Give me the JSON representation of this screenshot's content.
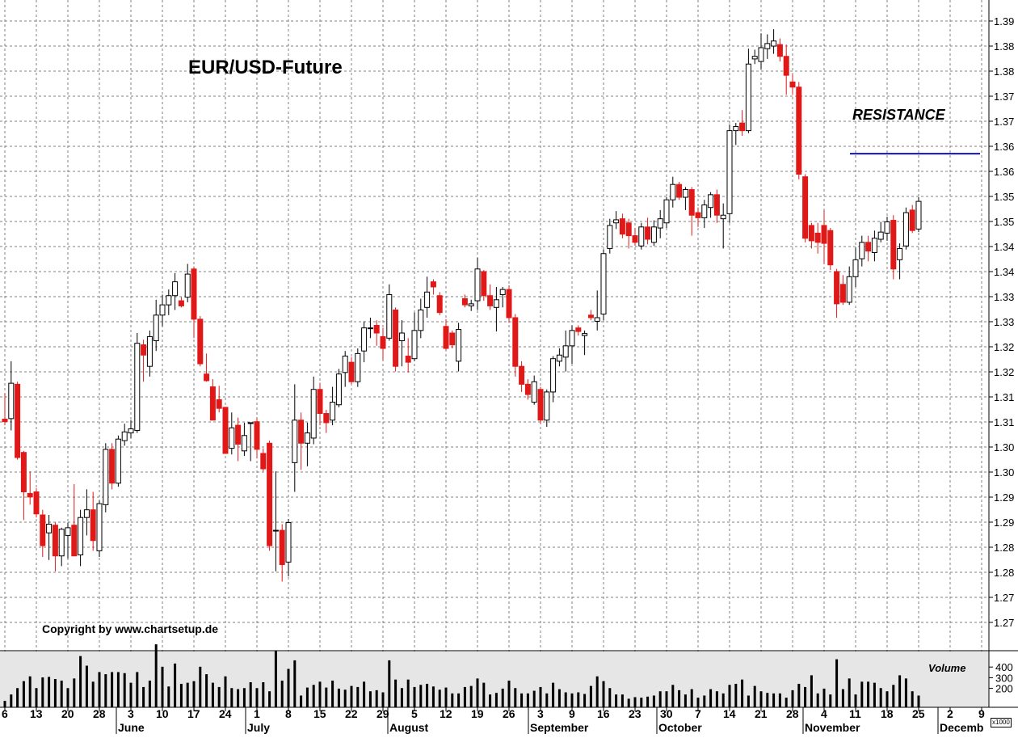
{
  "title": "EUR/USD-Future",
  "annotations": {
    "resistance_label": "RESISTANCE",
    "copyright": "Copyright by www.chartsetup.de",
    "volume_label": "Volume",
    "volume_scale": "x1000"
  },
  "colors": {
    "up": "#ffffff",
    "down": "#e01818",
    "wick_down": "#e01818",
    "wick_up": "#000000",
    "resistance_line": "#1010c0",
    "volume_bar": "#000000",
    "volume_bg": "#e6e6e6",
    "grid": "#808080"
  },
  "chart_data": {
    "type": "candlestick",
    "title": "EUR/USD-Future",
    "price_axis": {
      "range": [
        1.2635,
        1.3905
      ],
      "tick_labels": [
        "1.39",
        "1.38",
        "1.38",
        "1.37",
        "1.37",
        "1.36",
        "1.36",
        "1.35",
        "1.35",
        "1.34",
        "1.34",
        "1.33",
        "1.33",
        "1.32",
        "1.32",
        "1.31",
        "1.31",
        "1.30",
        "1.30",
        "1.29",
        "1.29",
        "1.28",
        "1.28",
        "1.27",
        "1.27"
      ]
    },
    "volume_axis": {
      "range": [
        0,
        500
      ],
      "tick_labels": [
        "400",
        "300",
        "200"
      ]
    },
    "time_axis": {
      "day_labels": [
        "6",
        "13",
        "20",
        "28",
        "3",
        "10",
        "17",
        "24",
        "1",
        "8",
        "15",
        "22",
        "29",
        "5",
        "12",
        "19",
        "26",
        "3",
        "9",
        "16",
        "23",
        "30",
        "7",
        "14",
        "21",
        "28",
        "4",
        "11",
        "18",
        "25",
        "2",
        "9"
      ],
      "month_labels": [
        "June",
        "July",
        "August",
        "September",
        "October",
        "November",
        "Decemb"
      ]
    },
    "resistance": {
      "label": "RESISTANCE",
      "value": 1.3605
    },
    "candles": [
      {
        "o": 1.3087,
        "h": 1.3137,
        "l": 1.3075,
        "c": 1.3082,
        "v": 60
      },
      {
        "o": 1.3088,
        "h": 1.32,
        "l": 1.3065,
        "c": 1.3157,
        "v": 120
      },
      {
        "o": 1.3155,
        "h": 1.316,
        "l": 1.3008,
        "c": 1.3012,
        "v": 180
      },
      {
        "o": 1.3022,
        "h": 1.3025,
        "l": 1.289,
        "c": 1.2945,
        "v": 245
      },
      {
        "o": 1.2942,
        "h": 1.2985,
        "l": 1.292,
        "c": 1.2935,
        "v": 290
      },
      {
        "o": 1.2945,
        "h": 1.2952,
        "l": 1.2895,
        "c": 1.2902,
        "v": 180
      },
      {
        "o": 1.29,
        "h": 1.291,
        "l": 1.2818,
        "c": 1.284,
        "v": 280
      },
      {
        "o": 1.2865,
        "h": 1.29,
        "l": 1.2812,
        "c": 1.2882,
        "v": 285
      },
      {
        "o": 1.288,
        "h": 1.2885,
        "l": 1.279,
        "c": 1.282,
        "v": 265
      },
      {
        "o": 1.282,
        "h": 1.2875,
        "l": 1.28,
        "c": 1.2872,
        "v": 250
      },
      {
        "o": 1.286,
        "h": 1.2885,
        "l": 1.2815,
        "c": 1.2875,
        "v": 180
      },
      {
        "o": 1.288,
        "h": 1.296,
        "l": 1.282,
        "c": 1.282,
        "v": 270
      },
      {
        "o": 1.2822,
        "h": 1.291,
        "l": 1.28,
        "c": 1.2895,
        "v": 480
      },
      {
        "o": 1.2895,
        "h": 1.295,
        "l": 1.286,
        "c": 1.291,
        "v": 390
      },
      {
        "o": 1.291,
        "h": 1.2945,
        "l": 1.283,
        "c": 1.285,
        "v": 240
      },
      {
        "o": 1.283,
        "h": 1.2928,
        "l": 1.2818,
        "c": 1.2922,
        "v": 330
      },
      {
        "o": 1.292,
        "h": 1.304,
        "l": 1.2905,
        "c": 1.3028,
        "v": 310
      },
      {
        "o": 1.3028,
        "h": 1.304,
        "l": 1.295,
        "c": 1.2962,
        "v": 330
      },
      {
        "o": 1.2962,
        "h": 1.3055,
        "l": 1.2955,
        "c": 1.3048,
        "v": 330
      },
      {
        "o": 1.3045,
        "h": 1.3078,
        "l": 1.3035,
        "c": 1.3062,
        "v": 320
      },
      {
        "o": 1.306,
        "h": 1.3085,
        "l": 1.305,
        "c": 1.3068,
        "v": 230
      },
      {
        "o": 1.3065,
        "h": 1.3255,
        "l": 1.306,
        "c": 1.3235,
        "v": 330
      },
      {
        "o": 1.3232,
        "h": 1.3242,
        "l": 1.316,
        "c": 1.3212,
        "v": 190
      },
      {
        "o": 1.319,
        "h": 1.326,
        "l": 1.317,
        "c": 1.3248,
        "v": 250
      },
      {
        "o": 1.324,
        "h": 1.332,
        "l": 1.322,
        "c": 1.329,
        "v": 590
      },
      {
        "o": 1.329,
        "h": 1.333,
        "l": 1.3268,
        "c": 1.331,
        "v": 380
      },
      {
        "o": 1.331,
        "h": 1.334,
        "l": 1.329,
        "c": 1.3328,
        "v": 195
      },
      {
        "o": 1.3328,
        "h": 1.3372,
        "l": 1.33,
        "c": 1.3355,
        "v": 410
      },
      {
        "o": 1.3318,
        "h": 1.3325,
        "l": 1.3305,
        "c": 1.3308,
        "v": 220
      },
      {
        "o": 1.3325,
        "h": 1.339,
        "l": 1.3315,
        "c": 1.337,
        "v": 230
      },
      {
        "o": 1.338,
        "h": 1.3385,
        "l": 1.3245,
        "c": 1.3282,
        "v": 245
      },
      {
        "o": 1.3282,
        "h": 1.3288,
        "l": 1.319,
        "c": 1.3195,
        "v": 380
      },
      {
        "o": 1.3175,
        "h": 1.3215,
        "l": 1.316,
        "c": 1.3162,
        "v": 310
      },
      {
        "o": 1.315,
        "h": 1.3165,
        "l": 1.3085,
        "c": 1.3085,
        "v": 230
      },
      {
        "o": 1.3125,
        "h": 1.3152,
        "l": 1.31,
        "c": 1.3108,
        "v": 190
      },
      {
        "o": 1.311,
        "h": 1.311,
        "l": 1.302,
        "c": 1.302,
        "v": 290
      },
      {
        "o": 1.303,
        "h": 1.31,
        "l": 1.3018,
        "c": 1.307,
        "v": 180
      },
      {
        "o": 1.3075,
        "h": 1.309,
        "l": 1.3005,
        "c": 1.3038,
        "v": 170
      },
      {
        "o": 1.3025,
        "h": 1.308,
        "l": 1.3015,
        "c": 1.3055,
        "v": 180
      },
      {
        "o": 1.308,
        "h": 1.308,
        "l": 1.3005,
        "c": 1.308,
        "v": 235
      },
      {
        "o": 1.3082,
        "h": 1.309,
        "l": 1.301,
        "c": 1.3028,
        "v": 180
      },
      {
        "o": 1.302,
        "h": 1.303,
        "l": 1.2985,
        "c": 1.299,
        "v": 235
      },
      {
        "o": 1.304,
        "h": 1.3045,
        "l": 1.283,
        "c": 1.284,
        "v": 150
      },
      {
        "o": 1.287,
        "h": 1.2985,
        "l": 1.279,
        "c": 1.287,
        "v": 530
      },
      {
        "o": 1.287,
        "h": 1.2882,
        "l": 1.277,
        "c": 1.2803,
        "v": 250
      },
      {
        "o": 1.2808,
        "h": 1.2892,
        "l": 1.278,
        "c": 1.2885,
        "v": 360
      },
      {
        "o": 1.3002,
        "h": 1.3155,
        "l": 1.2945,
        "c": 1.3085,
        "v": 440
      },
      {
        "o": 1.3085,
        "h": 1.31,
        "l": 1.2988,
        "c": 1.304,
        "v": 110
      },
      {
        "o": 1.304,
        "h": 1.308,
        "l": 1.2995,
        "c": 1.306,
        "v": 185
      },
      {
        "o": 1.305,
        "h": 1.317,
        "l": 1.3038,
        "c": 1.3145,
        "v": 210
      },
      {
        "o": 1.3145,
        "h": 1.3158,
        "l": 1.3075,
        "c": 1.3098,
        "v": 240
      },
      {
        "o": 1.3098,
        "h": 1.3105,
        "l": 1.306,
        "c": 1.308,
        "v": 185
      },
      {
        "o": 1.3085,
        "h": 1.315,
        "l": 1.3075,
        "c": 1.312,
        "v": 250
      },
      {
        "o": 1.3115,
        "h": 1.3185,
        "l": 1.311,
        "c": 1.3175,
        "v": 175
      },
      {
        "o": 1.3178,
        "h": 1.322,
        "l": 1.315,
        "c": 1.321,
        "v": 165
      },
      {
        "o": 1.3198,
        "h": 1.3208,
        "l": 1.3155,
        "c": 1.316,
        "v": 200
      },
      {
        "o": 1.316,
        "h": 1.3225,
        "l": 1.315,
        "c": 1.3215,
        "v": 190
      },
      {
        "o": 1.322,
        "h": 1.3278,
        "l": 1.3198,
        "c": 1.3265,
        "v": 240
      },
      {
        "o": 1.3265,
        "h": 1.3285,
        "l": 1.3245,
        "c": 1.3265,
        "v": 150
      },
      {
        "o": 1.327,
        "h": 1.328,
        "l": 1.323,
        "c": 1.3255,
        "v": 160
      },
      {
        "o": 1.3248,
        "h": 1.3265,
        "l": 1.3202,
        "c": 1.3225,
        "v": 140
      },
      {
        "o": 1.3245,
        "h": 1.335,
        "l": 1.324,
        "c": 1.333,
        "v": 440
      },
      {
        "o": 1.33,
        "h": 1.3305,
        "l": 1.318,
        "c": 1.319,
        "v": 260
      },
      {
        "o": 1.324,
        "h": 1.328,
        "l": 1.319,
        "c": 1.3255,
        "v": 180
      },
      {
        "o": 1.321,
        "h": 1.3245,
        "l": 1.3178,
        "c": 1.3198,
        "v": 260
      },
      {
        "o": 1.3205,
        "h": 1.3295,
        "l": 1.32,
        "c": 1.326,
        "v": 190
      },
      {
        "o": 1.326,
        "h": 1.3322,
        "l": 1.3245,
        "c": 1.33,
        "v": 210
      },
      {
        "o": 1.3305,
        "h": 1.3365,
        "l": 1.3285,
        "c": 1.3335,
        "v": 220
      },
      {
        "o": 1.3355,
        "h": 1.336,
        "l": 1.333,
        "c": 1.3345,
        "v": 195
      },
      {
        "o": 1.3328,
        "h": 1.3335,
        "l": 1.329,
        "c": 1.3295,
        "v": 165
      },
      {
        "o": 1.3268,
        "h": 1.3282,
        "l": 1.3222,
        "c": 1.3225,
        "v": 185
      },
      {
        "o": 1.3255,
        "h": 1.326,
        "l": 1.3225,
        "c": 1.3232,
        "v": 130
      },
      {
        "o": 1.32,
        "h": 1.3275,
        "l": 1.318,
        "c": 1.3262,
        "v": 130
      },
      {
        "o": 1.3322,
        "h": 1.333,
        "l": 1.3305,
        "c": 1.331,
        "v": 190
      },
      {
        "o": 1.3308,
        "h": 1.332,
        "l": 1.3298,
        "c": 1.3312,
        "v": 200
      },
      {
        "o": 1.3318,
        "h": 1.3402,
        "l": 1.33,
        "c": 1.338,
        "v": 270
      },
      {
        "o": 1.3375,
        "h": 1.3378,
        "l": 1.3318,
        "c": 1.3328,
        "v": 230
      },
      {
        "o": 1.3328,
        "h": 1.335,
        "l": 1.33,
        "c": 1.3308,
        "v": 120
      },
      {
        "o": 1.3305,
        "h": 1.3345,
        "l": 1.3258,
        "c": 1.332,
        "v": 135
      },
      {
        "o": 1.333,
        "h": 1.3345,
        "l": 1.3305,
        "c": 1.334,
        "v": 175
      },
      {
        "o": 1.334,
        "h": 1.3348,
        "l": 1.3275,
        "c": 1.3285,
        "v": 250
      },
      {
        "o": 1.3285,
        "h": 1.3292,
        "l": 1.317,
        "c": 1.319,
        "v": 180
      },
      {
        "o": 1.319,
        "h": 1.32,
        "l": 1.314,
        "c": 1.3155,
        "v": 130
      },
      {
        "o": 1.3155,
        "h": 1.3165,
        "l": 1.3125,
        "c": 1.3135,
        "v": 130
      },
      {
        "o": 1.312,
        "h": 1.3172,
        "l": 1.3115,
        "c": 1.316,
        "v": 155
      },
      {
        "o": 1.3145,
        "h": 1.315,
        "l": 1.3078,
        "c": 1.3085,
        "v": 190
      },
      {
        "o": 1.3085,
        "h": 1.3145,
        "l": 1.3072,
        "c": 1.314,
        "v": 130
      },
      {
        "o": 1.314,
        "h": 1.321,
        "l": 1.312,
        "c": 1.3205,
        "v": 230
      },
      {
        "o": 1.32,
        "h": 1.3225,
        "l": 1.319,
        "c": 1.3212,
        "v": 170
      },
      {
        "o": 1.3208,
        "h": 1.326,
        "l": 1.318,
        "c": 1.323,
        "v": 140
      },
      {
        "o": 1.323,
        "h": 1.327,
        "l": 1.3195,
        "c": 1.326,
        "v": 130
      },
      {
        "o": 1.3265,
        "h": 1.327,
        "l": 1.325,
        "c": 1.3258,
        "v": 140
      },
      {
        "o": 1.325,
        "h": 1.326,
        "l": 1.3212,
        "c": 1.3254,
        "v": 125
      },
      {
        "o": 1.329,
        "h": 1.33,
        "l": 1.328,
        "c": 1.3285,
        "v": 200
      },
      {
        "o": 1.3278,
        "h": 1.3338,
        "l": 1.326,
        "c": 1.3285,
        "v": 290
      },
      {
        "o": 1.3292,
        "h": 1.3418,
        "l": 1.328,
        "c": 1.341,
        "v": 245
      },
      {
        "o": 1.342,
        "h": 1.3478,
        "l": 1.341,
        "c": 1.3465,
        "v": 180
      },
      {
        "o": 1.347,
        "h": 1.3493,
        "l": 1.3458,
        "c": 1.3476,
        "v": 120
      },
      {
        "o": 1.3478,
        "h": 1.3488,
        "l": 1.344,
        "c": 1.3448,
        "v": 120
      },
      {
        "o": 1.347,
        "h": 1.3478,
        "l": 1.342,
        "c": 1.3445,
        "v": 80
      },
      {
        "o": 1.3445,
        "h": 1.346,
        "l": 1.3425,
        "c": 1.3432,
        "v": 95
      },
      {
        "o": 1.3425,
        "h": 1.347,
        "l": 1.3418,
        "c": 1.3462,
        "v": 90
      },
      {
        "o": 1.3462,
        "h": 1.348,
        "l": 1.3428,
        "c": 1.3438,
        "v": 100
      },
      {
        "o": 1.3432,
        "h": 1.3475,
        "l": 1.3425,
        "c": 1.3462,
        "v": 110
      },
      {
        "o": 1.346,
        "h": 1.3495,
        "l": 1.344,
        "c": 1.3478,
        "v": 150
      },
      {
        "o": 1.347,
        "h": 1.352,
        "l": 1.346,
        "c": 1.3515,
        "v": 150
      },
      {
        "o": 1.3515,
        "h": 1.356,
        "l": 1.35,
        "c": 1.3545,
        "v": 210
      },
      {
        "o": 1.3545,
        "h": 1.355,
        "l": 1.3515,
        "c": 1.352,
        "v": 160
      },
      {
        "o": 1.352,
        "h": 1.354,
        "l": 1.3495,
        "c": 1.3535,
        "v": 120
      },
      {
        "o": 1.3535,
        "h": 1.354,
        "l": 1.3445,
        "c": 1.3485,
        "v": 170
      },
      {
        "o": 1.349,
        "h": 1.35,
        "l": 1.3462,
        "c": 1.348,
        "v": 90
      },
      {
        "o": 1.348,
        "h": 1.3515,
        "l": 1.346,
        "c": 1.3505,
        "v": 110
      },
      {
        "o": 1.35,
        "h": 1.353,
        "l": 1.348,
        "c": 1.3525,
        "v": 170
      },
      {
        "o": 1.3525,
        "h": 1.3535,
        "l": 1.347,
        "c": 1.3485,
        "v": 150
      },
      {
        "o": 1.3478,
        "h": 1.3508,
        "l": 1.342,
        "c": 1.3485,
        "v": 130
      },
      {
        "o": 1.3488,
        "h": 1.3662,
        "l": 1.347,
        "c": 1.365,
        "v": 210
      },
      {
        "o": 1.365,
        "h": 1.3665,
        "l": 1.3622,
        "c": 1.3658,
        "v": 220
      },
      {
        "o": 1.3665,
        "h": 1.369,
        "l": 1.364,
        "c": 1.365,
        "v": 260
      },
      {
        "o": 1.365,
        "h": 1.381,
        "l": 1.3645,
        "c": 1.378,
        "v": 110
      },
      {
        "o": 1.379,
        "h": 1.3808,
        "l": 1.378,
        "c": 1.3795,
        "v": 200
      },
      {
        "o": 1.3785,
        "h": 1.384,
        "l": 1.377,
        "c": 1.3812,
        "v": 150
      },
      {
        "o": 1.381,
        "h": 1.3838,
        "l": 1.379,
        "c": 1.382,
        "v": 135
      },
      {
        "o": 1.3815,
        "h": 1.3848,
        "l": 1.38,
        "c": 1.3825,
        "v": 130
      },
      {
        "o": 1.3818,
        "h": 1.383,
        "l": 1.3785,
        "c": 1.3795,
        "v": 130
      },
      {
        "o": 1.3795,
        "h": 1.3818,
        "l": 1.372,
        "c": 1.3758,
        "v": 90
      },
      {
        "o": 1.3745,
        "h": 1.376,
        "l": 1.372,
        "c": 1.3735,
        "v": 160
      },
      {
        "o": 1.3735,
        "h": 1.3745,
        "l": 1.3555,
        "c": 1.3565,
        "v": 220
      },
      {
        "o": 1.356,
        "h": 1.3565,
        "l": 1.3432,
        "c": 1.344,
        "v": 190
      },
      {
        "o": 1.3465,
        "h": 1.347,
        "l": 1.342,
        "c": 1.3435,
        "v": 300
      },
      {
        "o": 1.345,
        "h": 1.347,
        "l": 1.341,
        "c": 1.3432,
        "v": 130
      },
      {
        "o": 1.3465,
        "h": 1.3495,
        "l": 1.339,
        "c": 1.343,
        "v": 175
      },
      {
        "o": 1.3455,
        "h": 1.346,
        "l": 1.3378,
        "c": 1.3388,
        "v": 120
      },
      {
        "o": 1.3375,
        "h": 1.338,
        "l": 1.3285,
        "c": 1.3312,
        "v": 450
      },
      {
        "o": 1.335,
        "h": 1.3368,
        "l": 1.331,
        "c": 1.3315,
        "v": 170
      },
      {
        "o": 1.3315,
        "h": 1.3385,
        "l": 1.331,
        "c": 1.3365,
        "v": 270
      },
      {
        "o": 1.3365,
        "h": 1.3422,
        "l": 1.3345,
        "c": 1.3398,
        "v": 120
      },
      {
        "o": 1.34,
        "h": 1.3445,
        "l": 1.3385,
        "c": 1.3432,
        "v": 240
      },
      {
        "o": 1.3432,
        "h": 1.3445,
        "l": 1.3395,
        "c": 1.3415,
        "v": 240
      },
      {
        "o": 1.3412,
        "h": 1.3455,
        "l": 1.3395,
        "c": 1.344,
        "v": 230
      },
      {
        "o": 1.3438,
        "h": 1.3472,
        "l": 1.3432,
        "c": 1.3452,
        "v": 180
      },
      {
        "o": 1.345,
        "h": 1.3482,
        "l": 1.3435,
        "c": 1.3472,
        "v": 150
      },
      {
        "o": 1.3475,
        "h": 1.3485,
        "l": 1.336,
        "c": 1.338,
        "v": 210
      },
      {
        "o": 1.3398,
        "h": 1.343,
        "l": 1.336,
        "c": 1.342,
        "v": 300
      },
      {
        "o": 1.3425,
        "h": 1.35,
        "l": 1.3418,
        "c": 1.349,
        "v": 270
      },
      {
        "o": 1.3495,
        "h": 1.3505,
        "l": 1.345,
        "c": 1.3455,
        "v": 150
      },
      {
        "o": 1.3458,
        "h": 1.352,
        "l": 1.3452,
        "c": 1.3512,
        "v": 110
      }
    ]
  }
}
